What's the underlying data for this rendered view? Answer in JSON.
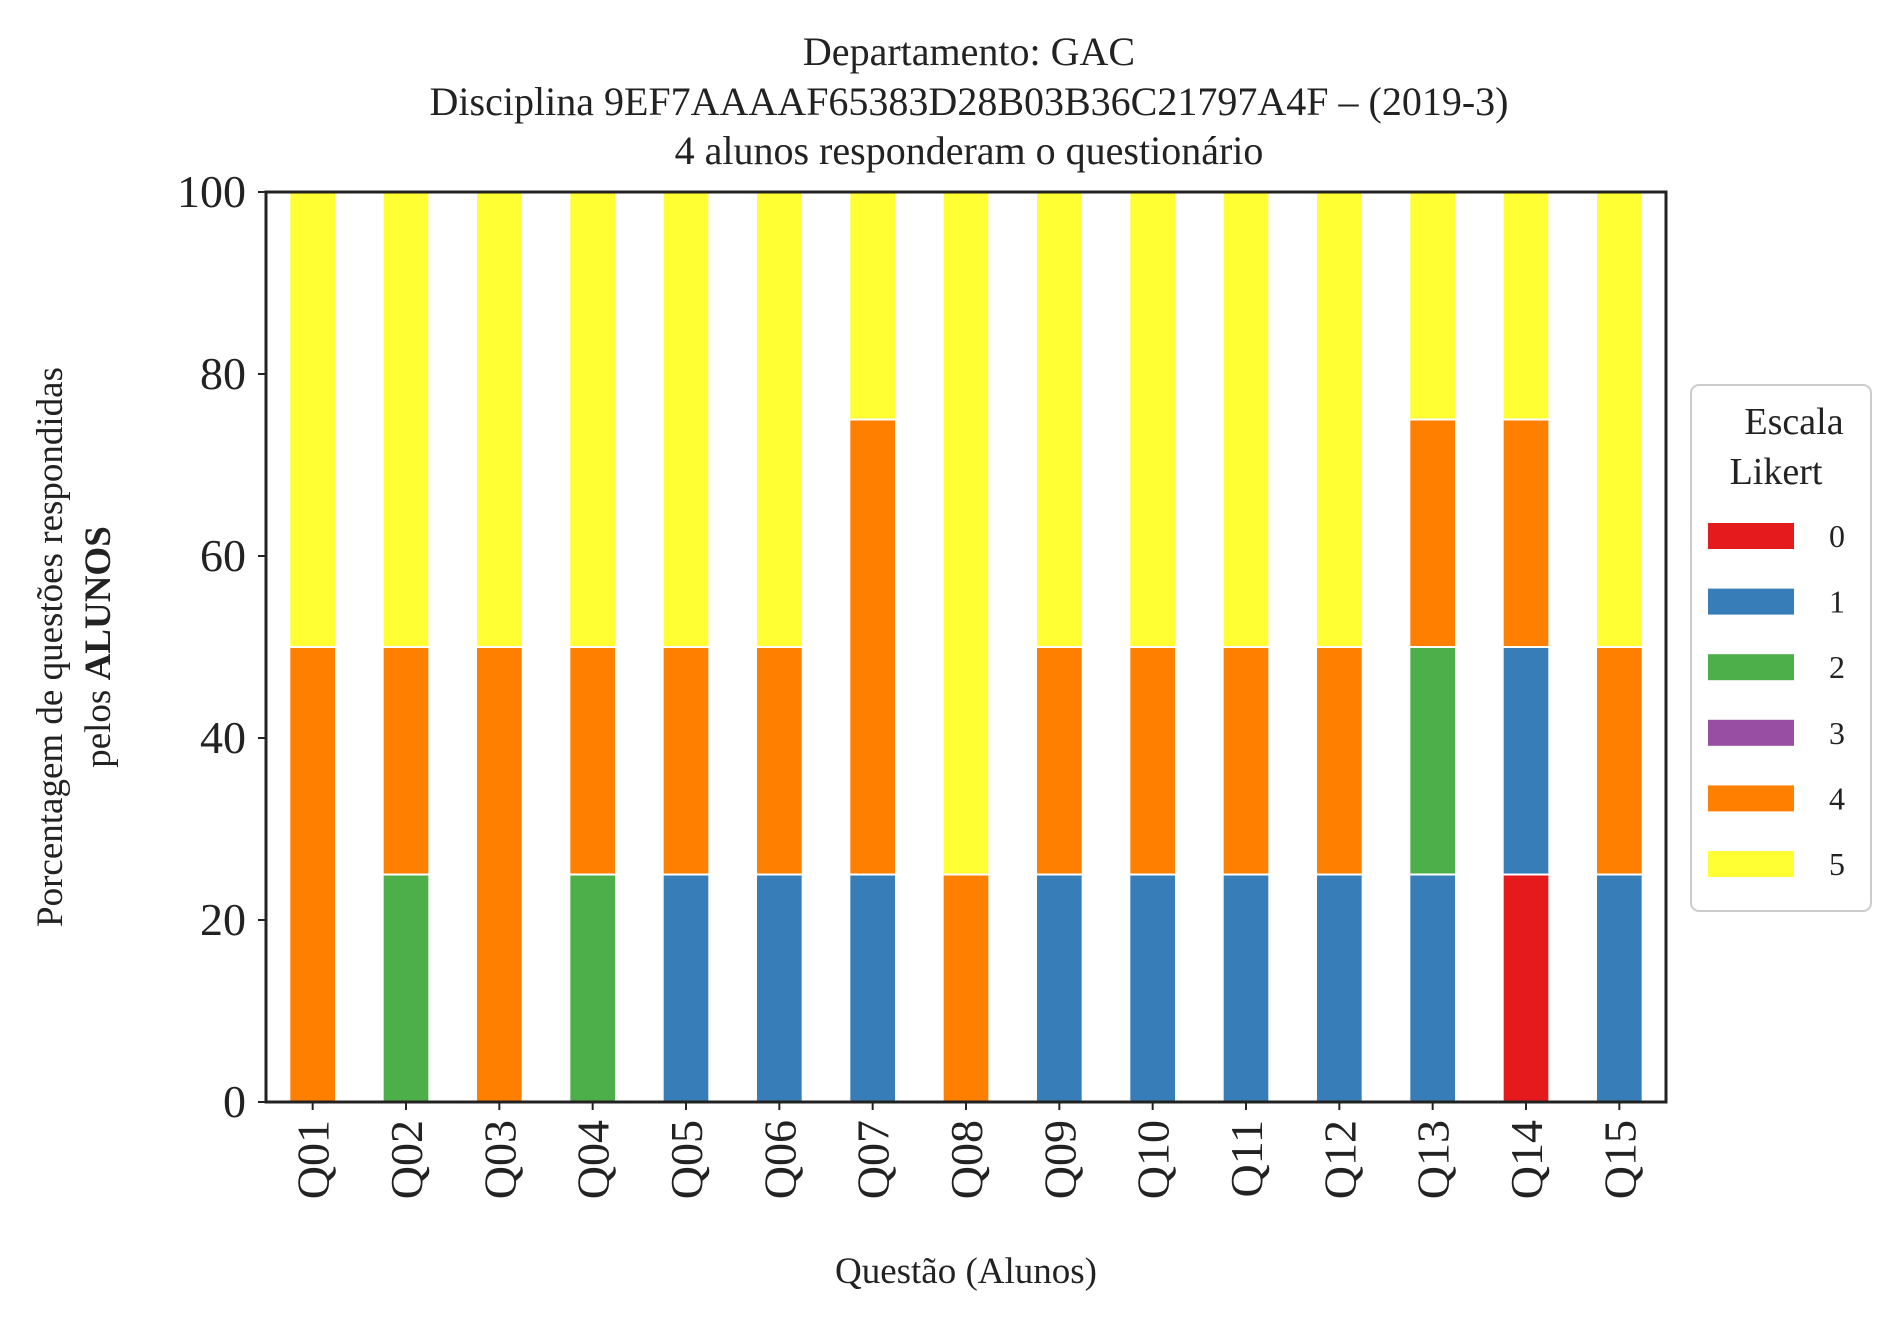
{
  "chart_data": {
    "type": "bar",
    "stacked": true,
    "title": [
      "Departamento: GAC",
      "Disciplina 9EF7AAAAF65383D28B03B36C21797A4F – (2019-3)",
      "4 alunos responderam o questionário"
    ],
    "xlabel": "Questão (Alunos)",
    "ylabel_line1": "Porcentagem de questões respondidas",
    "ylabel_line2_prefix": "pelos ",
    "ylabel_line2_bold": "ALUNOS",
    "ylim": [
      0,
      100
    ],
    "yticks": [
      "0",
      "20",
      "40",
      "60",
      "80",
      "100"
    ],
    "grid": false,
    "legend_position": "right",
    "legend_title": [
      "Escala",
      "Likert"
    ],
    "categories": [
      "Q01",
      "Q02",
      "Q03",
      "Q04",
      "Q05",
      "Q06",
      "Q07",
      "Q08",
      "Q09",
      "Q10",
      "Q11",
      "Q12",
      "Q13",
      "Q14",
      "Q15"
    ],
    "series": [
      {
        "name": "0",
        "color": "#e41a1c",
        "values": [
          0,
          0,
          0,
          0,
          0,
          0,
          0,
          0,
          0,
          0,
          0,
          0,
          0,
          25,
          0
        ]
      },
      {
        "name": "1",
        "color": "#377eb8",
        "values": [
          0,
          0,
          0,
          0,
          25,
          25,
          25,
          0,
          25,
          25,
          25,
          25,
          25,
          25,
          25
        ]
      },
      {
        "name": "2",
        "color": "#4daf4a",
        "values": [
          0,
          25,
          0,
          25,
          0,
          0,
          0,
          0,
          0,
          0,
          0,
          0,
          25,
          0,
          0
        ]
      },
      {
        "name": "3",
        "color": "#984ea3",
        "values": [
          0,
          0,
          0,
          0,
          0,
          0,
          0,
          0,
          0,
          0,
          0,
          0,
          0,
          0,
          0
        ]
      },
      {
        "name": "4",
        "color": "#ff7f00",
        "values": [
          50,
          25,
          50,
          25,
          25,
          25,
          50,
          25,
          25,
          25,
          25,
          25,
          25,
          25,
          25
        ]
      },
      {
        "name": "5",
        "color": "#ffff33",
        "values": [
          50,
          50,
          50,
          50,
          50,
          50,
          25,
          75,
          50,
          50,
          50,
          50,
          25,
          25,
          50
        ]
      }
    ]
  }
}
